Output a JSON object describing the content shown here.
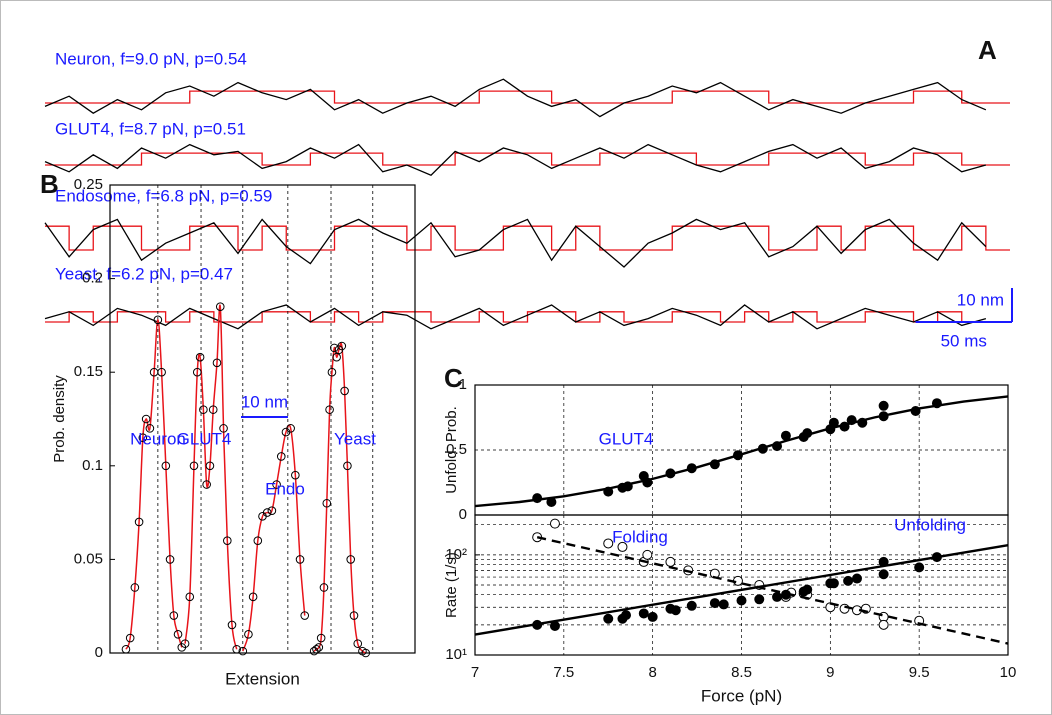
{
  "chart_data": [
    {
      "type": "trace",
      "panel": "A",
      "x": [
        0,
        12.5,
        25,
        37.5,
        50,
        62.5,
        75,
        87.5,
        100,
        112.5,
        125,
        137.5,
        150,
        162.5,
        175,
        187.5,
        200,
        212.5,
        225,
        237.5,
        250,
        262.5,
        275,
        287.5,
        300,
        312.5,
        325,
        337.5,
        350,
        362.5,
        375,
        387.5,
        400,
        412.5,
        425,
        437.5,
        450,
        462.5,
        475,
        487.5
      ],
      "xlim": [
        0,
        500
      ],
      "trace_color": "#000000",
      "state_color": "#e8141a",
      "label_color": "#1a1aff",
      "traces": [
        {
          "label": "Neuron, f=9.0 pN, p=0.54",
          "values": [
            -1,
            2,
            -3,
            1,
            -2,
            3,
            5,
            2,
            6,
            3,
            1,
            4,
            -2,
            1,
            -3,
            0,
            2,
            -1,
            4,
            7,
            2,
            -1,
            1,
            -4,
            0,
            2,
            5,
            3,
            6,
            2,
            -2,
            1,
            -1,
            -3,
            0,
            2,
            4,
            6,
            1,
            -2
          ],
          "states": [
            0,
            0,
            0,
            0,
            0,
            0,
            3.5,
            3.5,
            3.5,
            3.5,
            3.5,
            3.5,
            0,
            0,
            0,
            0,
            0,
            0,
            3.5,
            3.5,
            3.5,
            0,
            0,
            0,
            0,
            0,
            3.5,
            3.5,
            3.5,
            3.5,
            0,
            0,
            0,
            0,
            0,
            0,
            3.5,
            3.5,
            0,
            0
          ]
        },
        {
          "label": "GLUT4, f=8.7 pN, p=0.51",
          "values": [
            1,
            -2,
            3,
            -1,
            5,
            2,
            6,
            3,
            4,
            -1,
            1,
            5,
            2,
            6,
            -2,
            0,
            -3,
            4,
            1,
            5,
            3,
            -1,
            2,
            5,
            2,
            6,
            3,
            0,
            -2,
            1,
            4,
            6,
            2,
            5,
            -1,
            1,
            5,
            3,
            -2,
            0
          ],
          "states": [
            0,
            0,
            0,
            0,
            3.5,
            3.5,
            3.5,
            3.5,
            3.5,
            0,
            0,
            3.5,
            3.5,
            3.5,
            0,
            0,
            0,
            3.5,
            3.5,
            3.5,
            3.5,
            0,
            0,
            3.5,
            3.5,
            3.5,
            3.5,
            0,
            0,
            0,
            3.5,
            3.5,
            3.5,
            3.5,
            0,
            0,
            3.5,
            3.5,
            0,
            0
          ]
        },
        {
          "label": "Endosome, f=6.8 pN, p=0.59",
          "values": [
            8,
            -2,
            6,
            9,
            -3,
            2,
            5,
            8,
            -1,
            9,
            1,
            -4,
            6,
            9,
            5,
            2,
            8,
            -2,
            0,
            6,
            9,
            -3,
            7,
            1,
            -5,
            2,
            5,
            9,
            6,
            8,
            -2,
            1,
            7,
            -1,
            6,
            9,
            2,
            -3,
            8,
            1
          ],
          "states": [
            7,
            0,
            7,
            7,
            0,
            0,
            7,
            7,
            0,
            7,
            0,
            0,
            7,
            7,
            7,
            0,
            7,
            0,
            0,
            7,
            7,
            0,
            7,
            0,
            0,
            0,
            7,
            7,
            7,
            7,
            0,
            0,
            7,
            0,
            7,
            7,
            0,
            0,
            7,
            0
          ]
        },
        {
          "label": "Yeast, f=6.2 pN, p=0.47",
          "values": [
            1,
            3,
            -1,
            4,
            2,
            -1,
            4,
            1,
            -2,
            3,
            5,
            0,
            4,
            -1,
            3,
            2,
            -2,
            1,
            4,
            -1,
            2,
            5,
            0,
            3,
            -1,
            1,
            4,
            2,
            -1,
            5,
            0,
            3,
            -2,
            1,
            4,
            2,
            0,
            3,
            -1,
            1
          ],
          "states": [
            0,
            3,
            0,
            3,
            3,
            0,
            3,
            0,
            0,
            3,
            3,
            0,
            3,
            0,
            3,
            3,
            0,
            0,
            3,
            0,
            3,
            3,
            0,
            3,
            0,
            0,
            3,
            3,
            0,
            3,
            0,
            3,
            0,
            0,
            3,
            3,
            0,
            3,
            0,
            0
          ]
        }
      ],
      "scalebar": {
        "y": {
          "value": 10,
          "label": "10 nm"
        },
        "x": {
          "value": 50,
          "label": "50 ms"
        }
      }
    },
    {
      "type": "density",
      "panel": "B",
      "ylabel": "Prob. density",
      "xlabel": "Extension",
      "xlim": [
        0,
        65
      ],
      "ylim": [
        0,
        0.25
      ],
      "yticks": [
        0,
        0.05,
        0.1,
        0.15,
        0.2,
        0.25
      ],
      "vlines": [
        10.2,
        19.4,
        28.3,
        37.9,
        47.1,
        56.0
      ],
      "annotations": [
        "Neuron",
        "GLUT4",
        "Endo",
        "Yeast"
      ],
      "scalebar": {
        "value": 10,
        "label": "10 nm"
      },
      "marker_color": "#000000",
      "fit_color": "#e8141a",
      "label_color": "#1a1aff",
      "series": [
        {
          "x": [
            3.4,
            4.3,
            5.3,
            6.2,
            7.0,
            7.7,
            8.5,
            9.4,
            10.2,
            11.0,
            11.9,
            12.8,
            13.6,
            14.5,
            15.3
          ],
          "values": [
            0.002,
            0.008,
            0.035,
            0.07,
            0.115,
            0.125,
            0.12,
            0.15,
            0.178,
            0.15,
            0.1,
            0.05,
            0.02,
            0.01,
            0.003
          ]
        },
        {
          "x": [
            16.0,
            17.0,
            17.9,
            18.6,
            19.2,
            19.9,
            20.6,
            21.3,
            22.0,
            22.8,
            23.5,
            24.2,
            25.0,
            26.0,
            27.0
          ],
          "values": [
            0.005,
            0.03,
            0.1,
            0.15,
            0.158,
            0.13,
            0.09,
            0.1,
            0.13,
            0.155,
            0.185,
            0.12,
            0.06,
            0.015,
            0.002
          ]
        },
        {
          "x": [
            28.3,
            29.5,
            30.5,
            31.5,
            32.5,
            33.5,
            34.5,
            35.5,
            36.5,
            37.5,
            38.5,
            39.5,
            40.5,
            41.5
          ],
          "values": [
            0.001,
            0.01,
            0.03,
            0.06,
            0.073,
            0.075,
            0.076,
            0.09,
            0.105,
            0.118,
            0.12,
            0.095,
            0.05,
            0.02
          ]
        },
        {
          "x": [
            43.5,
            44.0,
            44.5,
            45.0,
            45.6,
            46.2,
            46.8,
            47.3,
            47.8,
            48.3,
            48.8,
            49.4,
            50.0,
            50.6,
            51.3,
            52.0,
            52.8,
            53.8,
            54.5
          ],
          "values": [
            0.001,
            0.002,
            0.003,
            0.008,
            0.035,
            0.08,
            0.13,
            0.15,
            0.163,
            0.158,
            0.162,
            0.164,
            0.14,
            0.1,
            0.05,
            0.02,
            0.005,
            0.001,
            0.0
          ]
        }
      ]
    },
    {
      "type": "scatter",
      "panel": "C",
      "ylabel": "Unfold. Prob.",
      "xlim": [
        7,
        10
      ],
      "xticks": [
        7,
        7.5,
        8,
        8.5,
        9,
        9.5,
        10
      ],
      "ylim": [
        0,
        1
      ],
      "yticks": [
        0,
        0.5,
        1
      ],
      "grid": true,
      "annotations": [
        "GLUT4"
      ],
      "label_color": "#1a1aff",
      "series": [
        {
          "marker": "filled",
          "color": "#000000",
          "x": [
            7.35,
            7.43,
            7.75,
            7.83,
            7.86,
            7.95,
            7.97,
            8.1,
            8.22,
            8.35,
            8.48,
            8.62,
            8.7,
            8.75,
            8.85,
            8.87,
            9.0,
            9.02,
            9.08,
            9.12,
            9.18,
            9.3,
            9.3,
            9.48,
            9.6
          ],
          "values": [
            0.13,
            0.1,
            0.18,
            0.21,
            0.22,
            0.3,
            0.25,
            0.32,
            0.36,
            0.39,
            0.46,
            0.51,
            0.53,
            0.61,
            0.6,
            0.63,
            0.66,
            0.71,
            0.68,
            0.73,
            0.71,
            0.76,
            0.84,
            0.8,
            0.86
          ]
        },
        {
          "line": "solid",
          "color": "#000000",
          "x": [
            7,
            7.25,
            7.5,
            7.75,
            8,
            8.25,
            8.5,
            8.75,
            9,
            9.25,
            9.5,
            9.75,
            10
          ],
          "values": [
            0.069,
            0.1,
            0.144,
            0.203,
            0.278,
            0.367,
            0.467,
            0.57,
            0.667,
            0.751,
            0.82,
            0.873,
            0.912
          ]
        }
      ]
    },
    {
      "type": "scatter",
      "ylabel": "Rate (1/s)",
      "xlabel": "Force (pN)",
      "xlim": [
        7,
        10
      ],
      "xticks": [
        7,
        7.5,
        8,
        8.5,
        9,
        9.5,
        10
      ],
      "ylim": [
        10,
        250
      ],
      "ylog": true,
      "yticks": [
        {
          "value": 10,
          "label": "10¹"
        },
        {
          "value": 100,
          "label": "10²"
        }
      ],
      "ygrid": [
        20,
        30,
        40,
        50,
        60,
        70,
        80,
        90,
        100,
        200
      ],
      "grid": true,
      "label_color": "#1a1aff",
      "series": [
        {
          "name": "Folding",
          "marker": "open",
          "color": "#000000",
          "x": [
            7.35,
            7.45,
            7.75,
            7.83,
            7.95,
            7.97,
            8.1,
            8.2,
            8.35,
            8.48,
            8.6,
            8.75,
            8.78,
            8.85,
            8.87,
            9.0,
            9.08,
            9.15,
            9.2,
            9.3,
            9.3,
            9.5
          ],
          "values": [
            150,
            205,
            130,
            120,
            85,
            100,
            85,
            70,
            65,
            55,
            50,
            38,
            42,
            41,
            40,
            30,
            29,
            28,
            29,
            24,
            20,
            22
          ]
        },
        {
          "name": "Unfolding",
          "marker": "filled",
          "color": "#000000",
          "x": [
            7.35,
            7.45,
            7.75,
            7.83,
            7.85,
            7.95,
            8.0,
            8.1,
            8.13,
            8.22,
            8.35,
            8.4,
            8.5,
            8.6,
            8.7,
            8.75,
            8.85,
            8.87,
            9.0,
            9.02,
            9.1,
            9.15,
            9.3,
            9.3,
            9.5,
            9.6
          ],
          "values": [
            20,
            19.5,
            23,
            23,
            25,
            26,
            24,
            29,
            28,
            31,
            33,
            32,
            35,
            36,
            38,
            40,
            43,
            45,
            52,
            52,
            55,
            58,
            64,
            85,
            75,
            95
          ]
        },
        {
          "line": "dashed",
          "color": "#000000",
          "x": [
            7.35,
            10
          ],
          "values": [
            150,
            13
          ]
        },
        {
          "line": "solid",
          "color": "#000000",
          "x": [
            7,
            10
          ],
          "values": [
            16,
            125
          ]
        }
      ]
    }
  ]
}
